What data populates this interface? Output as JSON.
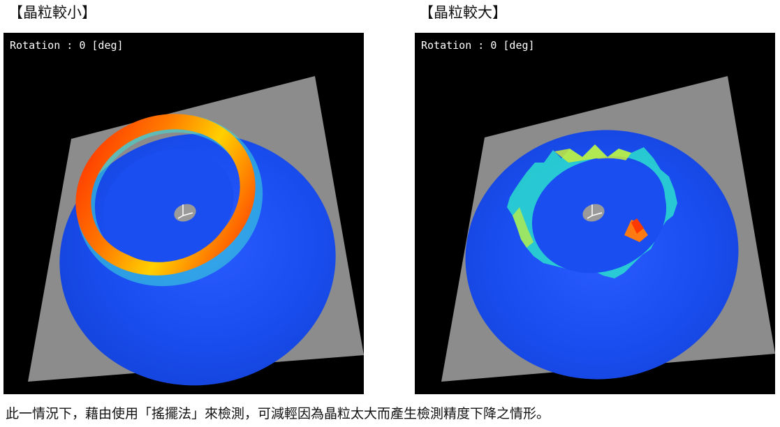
{
  "panels": [
    {
      "title": "【晶粒較小】",
      "rotation_label": "Rotation : 0 [deg]"
    },
    {
      "title": "【晶粒較大】",
      "rotation_label": "Rotation : 0 [deg]"
    }
  ],
  "caption": "此一情況下，藉由使用「搖擺法」來檢測，可減輕因為晶粒太大而產生檢測精度下降之情形。",
  "colors": {
    "viewport_background": "#000000",
    "plane": "#8c8c8c",
    "disc_blue": "#1448e6",
    "ring_red": "#ff2000",
    "ring_yellow": "#ffd200",
    "ring_cyan": "#1fd8e8"
  }
}
